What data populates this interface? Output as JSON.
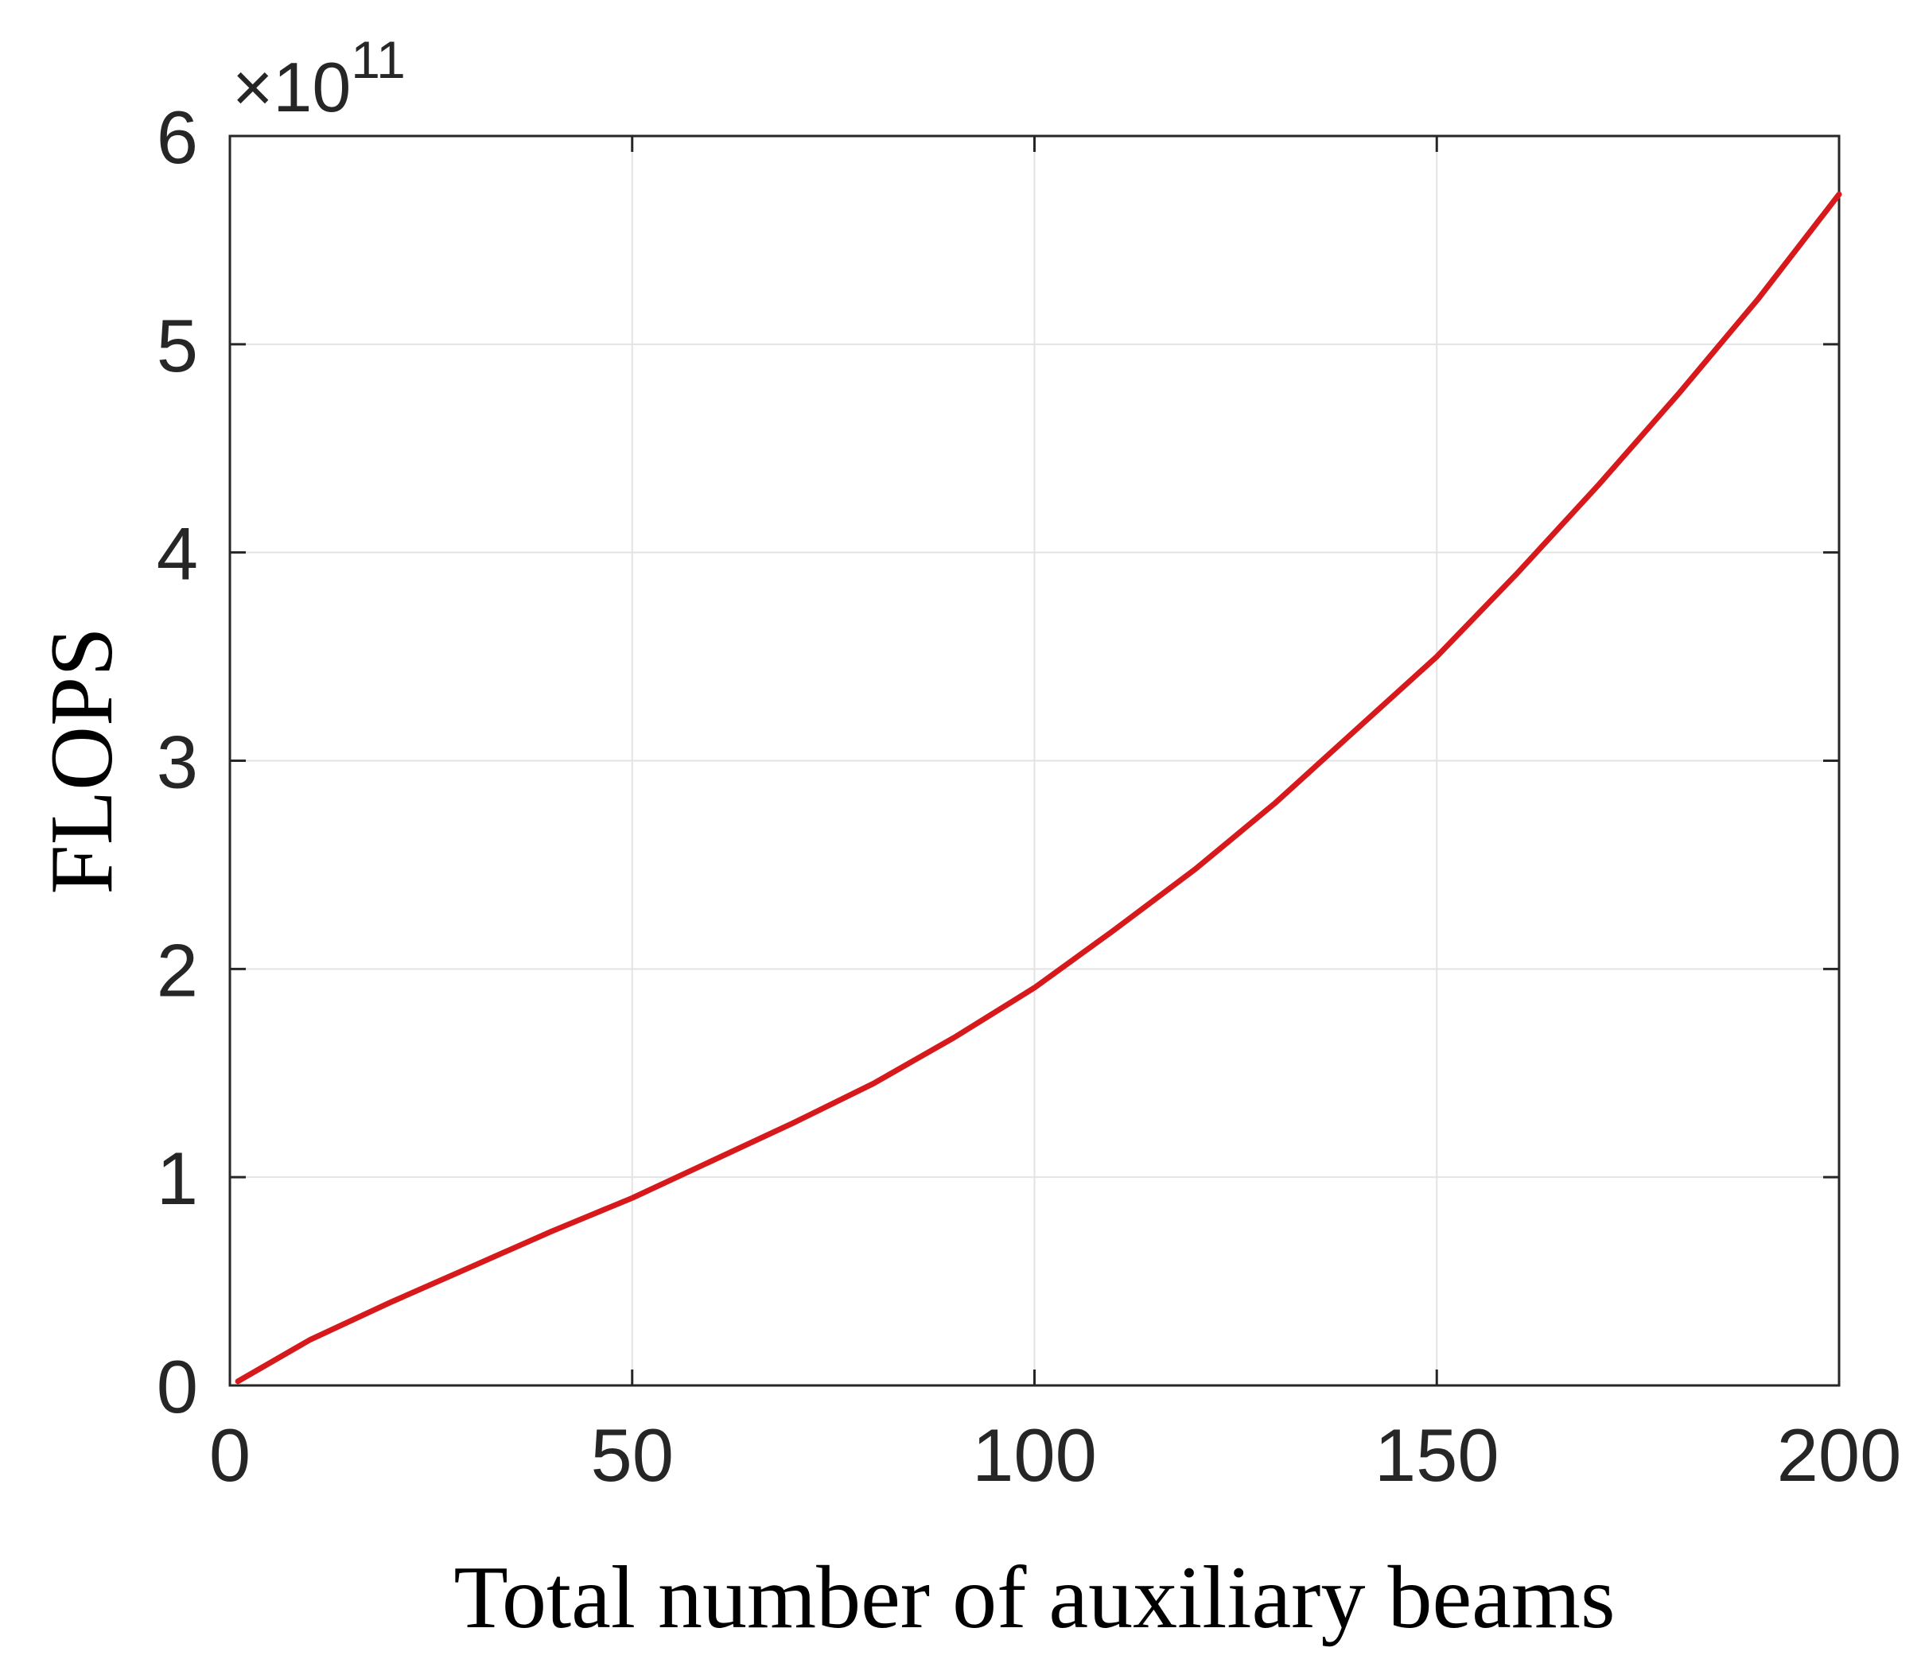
{
  "chart_data": {
    "type": "line",
    "title": "",
    "xlabel": "Total number of auxiliary beams",
    "ylabel": "FLOPS",
    "y_multiplier_label": {
      "times": "×",
      "base": "10",
      "exponent": "11"
    },
    "xlim": [
      0,
      200
    ],
    "ylim": [
      0,
      6
    ],
    "x_ticks": [
      0,
      50,
      100,
      150,
      200
    ],
    "y_ticks": [
      0,
      1,
      2,
      3,
      4,
      5,
      6
    ],
    "grid": true,
    "legend": "none",
    "line_color": "#d7191c",
    "series": [
      {
        "x": [
          1,
          10,
          20,
          30,
          40,
          50,
          60,
          70,
          80,
          90,
          100,
          110,
          120,
          130,
          140,
          150,
          160,
          170,
          180,
          190,
          200
        ],
        "values": [
          0.02,
          0.22,
          0.4,
          0.57,
          0.74,
          0.9,
          1.08,
          1.26,
          1.45,
          1.67,
          1.91,
          2.19,
          2.48,
          2.8,
          3.15,
          3.5,
          3.9,
          4.32,
          4.76,
          5.22,
          5.72
        ]
      }
    ]
  }
}
